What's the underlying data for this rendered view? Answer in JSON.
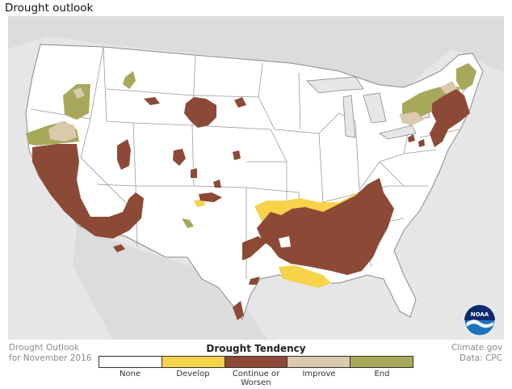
{
  "title": "Drought outlook",
  "footer_left": {
    "line1": "Drought Outlook",
    "line2": "for November 2016"
  },
  "footer_right": {
    "line1": "Climate.gov",
    "line2": "Data: CPC"
  },
  "legend": {
    "title": "Drought Tendency",
    "items": [
      {
        "label": "None",
        "color": "#ffffff"
      },
      {
        "label": "Develop",
        "color": "#f7d24b"
      },
      {
        "label": "Continue or Worsen",
        "color": "#8c4a36"
      },
      {
        "label": "Improve",
        "color": "#d9c9ad"
      },
      {
        "label": "End",
        "color": "#a8a85a"
      }
    ]
  },
  "logo_text": "NOAA",
  "colors": {
    "background": "#e6e6e6",
    "land": "#ffffff",
    "border": "#8a8a8a"
  }
}
